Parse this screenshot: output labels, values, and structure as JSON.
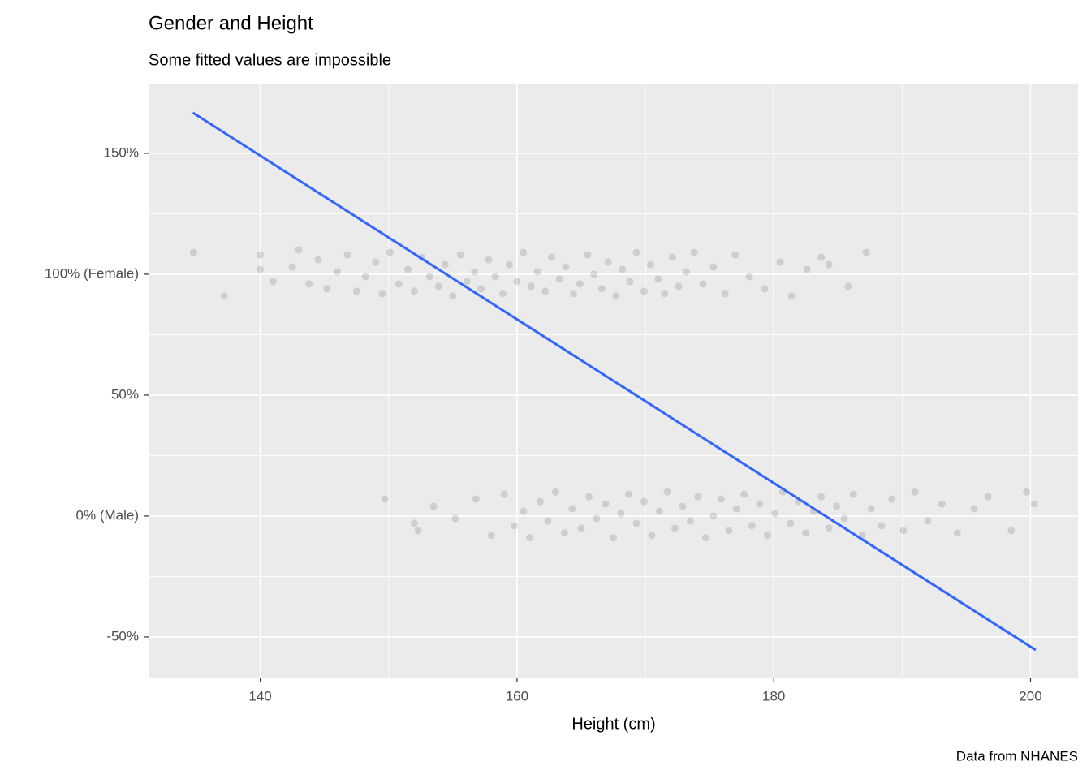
{
  "chart_data": {
    "type": "scatter",
    "title": "Gender and Height",
    "subtitle": "Some fitted values are impossible",
    "x_label": "Height (cm)",
    "caption": "Data from NHANES",
    "xlim": [
      131.3,
      203.7
    ],
    "ylim": [
      -66.8,
      178.5
    ],
    "xticks": [
      140,
      160,
      180,
      200
    ],
    "yticks": [
      {
        "value": 150,
        "label": "150%"
      },
      {
        "value": 100,
        "label": "100% (Female)"
      },
      {
        "value": 50,
        "label": "50%"
      },
      {
        "value": 0,
        "label": "0% (Male)"
      },
      {
        "value": -50,
        "label": "-50%"
      }
    ],
    "grid": true,
    "series": [
      {
        "type": "scatter",
        "color": "#000000",
        "x": [
          134.8,
          137.2,
          140,
          140,
          141,
          142.5,
          143,
          143.8,
          144.5,
          145.2,
          146,
          146.8,
          147.5,
          148.2,
          149,
          149.5,
          150.1,
          150.8,
          151.5,
          152,
          152.6,
          153.2,
          153.9,
          154.4,
          155,
          155.6,
          156.1,
          156.7,
          157.2,
          157.8,
          158.3,
          158.9,
          159.4,
          160,
          160.5,
          161.1,
          161.6,
          162.2,
          162.7,
          163.3,
          163.8,
          164.4,
          164.9,
          165.5,
          166,
          166.6,
          167.1,
          167.7,
          168.2,
          168.8,
          169.3,
          169.9,
          170.4,
          171,
          171.5,
          172.1,
          172.6,
          173.2,
          173.8,
          174.5,
          175.3,
          176.2,
          177,
          178.1,
          179.3,
          180.5,
          181.4,
          182.6,
          183.7,
          184.3,
          185.8,
          187.2,
          149.7,
          152,
          152.3,
          153.5,
          155.2,
          156.8,
          158,
          159,
          159.8,
          160.5,
          161,
          161.8,
          162.4,
          163,
          163.7,
          164.3,
          165,
          165.6,
          166.2,
          166.9,
          167.5,
          168.1,
          168.7,
          169.3,
          169.9,
          170.5,
          171.1,
          171.7,
          172.3,
          172.9,
          173.5,
          174.1,
          174.7,
          175.3,
          175.9,
          176.5,
          177.1,
          177.7,
          178.3,
          178.9,
          179.5,
          180.1,
          180.7,
          181.3,
          181.9,
          182.5,
          183.1,
          183.7,
          184.3,
          184.9,
          185.5,
          186.2,
          186.9,
          187.6,
          188.4,
          189.2,
          190.1,
          191,
          192,
          193.1,
          194.3,
          195.6,
          196.7,
          198.5,
          199.7,
          200.3
        ],
        "values": [
          109,
          91,
          108,
          102,
          97,
          103,
          110,
          96,
          106,
          94,
          101,
          108,
          93,
          99,
          105,
          92,
          109,
          96,
          102,
          93,
          107,
          99,
          95,
          104,
          91,
          108,
          97,
          101,
          94,
          106,
          99,
          92,
          104,
          97,
          109,
          95,
          101,
          93,
          107,
          98,
          103,
          92,
          96,
          108,
          100,
          94,
          105,
          91,
          102,
          97,
          109,
          93,
          104,
          98,
          92,
          107,
          95,
          101,
          109,
          96,
          103,
          92,
          108,
          99,
          94,
          105,
          91,
          102,
          107,
          104,
          95,
          109,
          7,
          -3,
          -6,
          4,
          -1,
          7,
          -8,
          9,
          -4,
          2,
          -9,
          6,
          -2,
          10,
          -7,
          3,
          -5,
          8,
          -1,
          5,
          -9,
          1,
          9,
          -3,
          6,
          -8,
          2,
          10,
          -5,
          4,
          -2,
          8,
          -9,
          0,
          7,
          -6,
          3,
          9,
          -4,
          5,
          -8,
          1,
          10,
          -3,
          6,
          -7,
          2,
          8,
          -5,
          4,
          -1,
          9,
          -8,
          3,
          -4,
          7,
          -6,
          10,
          -2,
          5,
          -7,
          3,
          8,
          -6,
          10,
          5
        ]
      },
      {
        "type": "line",
        "color": "#3366ff",
        "x": [
          134.75,
          200.4
        ],
        "values": [
          166.8,
          -55.4
        ]
      }
    ]
  }
}
